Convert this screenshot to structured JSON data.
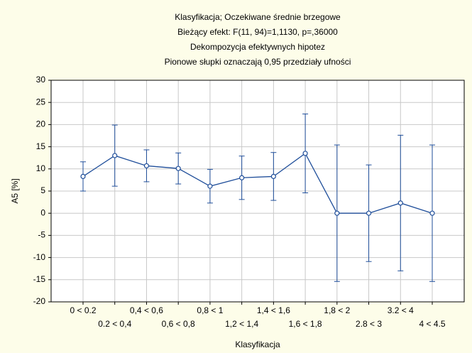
{
  "chart_data": {
    "type": "line",
    "titles": [
      "Klasyfikacja; Oczekiwane średnie brzegowe",
      "Bieżący efekt: F(11, 94)=1,1130, p=,36000",
      "Dekompozycja efektywnych hipotez",
      "Pionowe słupki oznaczają 0,95 przedziały ufności"
    ],
    "xlabel": "Klasyfikacja",
    "ylabel": "A5 [%]",
    "categories": [
      "0 < 0.2",
      "0.2 < 0,4",
      "0,4 < 0,6",
      "0,6 < 0,8",
      "0,8 < 1",
      "1,2 < 1,4",
      "1,4 < 1,6",
      "1,6 < 1,8",
      "1,8 < 2",
      "2.8 < 3",
      "3.2 < 4",
      "4 < 4.5"
    ],
    "series": [
      {
        "color": "#1f4e9a",
        "values": [
          8.3,
          13.0,
          10.7,
          10.1,
          6.1,
          8.0,
          8.3,
          13.5,
          0,
          0,
          2.3,
          0
        ],
        "errors": [
          3.3,
          6.9,
          3.6,
          3.5,
          3.8,
          4.9,
          5.4,
          8.9,
          15.4,
          10.9,
          15.3,
          15.4
        ]
      }
    ],
    "ylim": [
      -20,
      30
    ],
    "yticks": [
      -20,
      -15,
      -10,
      -5,
      0,
      5,
      10,
      15,
      20,
      25,
      30
    ],
    "grid": true
  }
}
